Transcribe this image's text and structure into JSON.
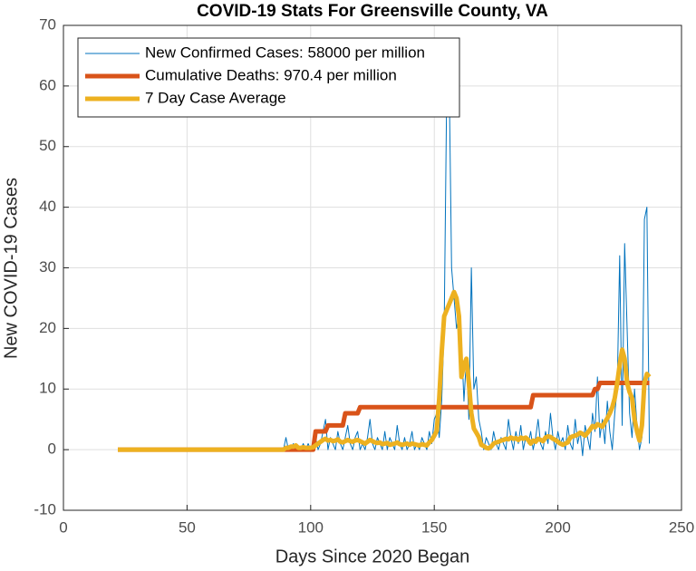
{
  "chart_data": {
    "type": "line",
    "title": "COVID-19 Stats For Greensville County, VA",
    "x_label": "Days Since 2020 Began",
    "y_label": "New COVID-19 Cases",
    "xlim": [
      0,
      250
    ],
    "xticks": [
      0,
      50,
      100,
      150,
      200,
      250
    ],
    "ylim": [
      -10,
      70
    ],
    "yticks": [
      -10,
      0,
      10,
      20,
      30,
      40,
      50,
      60,
      70
    ],
    "grid": true,
    "legend": "upper left",
    "x": [
      22,
      88,
      89,
      90,
      91,
      92,
      93,
      94,
      95,
      96,
      97,
      98,
      99,
      100,
      101,
      102,
      103,
      104,
      105,
      106,
      107,
      108,
      109,
      110,
      111,
      112,
      113,
      114,
      115,
      116,
      117,
      118,
      119,
      120,
      121,
      122,
      123,
      124,
      125,
      126,
      127,
      128,
      129,
      130,
      131,
      132,
      133,
      134,
      135,
      136,
      137,
      138,
      139,
      140,
      141,
      142,
      143,
      144,
      145,
      146,
      147,
      148,
      149,
      150,
      151,
      152,
      153,
      154,
      155,
      156,
      157,
      158,
      159,
      160,
      161,
      162,
      163,
      164,
      165,
      166,
      167,
      168,
      169,
      170,
      171,
      172,
      173,
      174,
      175,
      176,
      177,
      178,
      179,
      180,
      181,
      182,
      183,
      184,
      185,
      186,
      187,
      188,
      189,
      190,
      191,
      192,
      193,
      194,
      195,
      196,
      197,
      198,
      199,
      200,
      201,
      202,
      203,
      204,
      205,
      206,
      207,
      208,
      209,
      210,
      211,
      212,
      213,
      214,
      215,
      216,
      217,
      218,
      219,
      220,
      221,
      222,
      223,
      224,
      225,
      226,
      227,
      228,
      229,
      230,
      231,
      232,
      233,
      234,
      235,
      236,
      237
    ],
    "series": [
      {
        "name": "New Confirmed Cases: 58000 per million",
        "color": "#0072BD",
        "width": 1,
        "values": [
          0,
          0,
          0,
          2,
          0,
          0,
          1,
          0,
          0,
          0,
          1,
          0,
          1,
          0,
          0,
          2,
          0,
          1,
          3,
          5,
          0,
          2,
          1,
          0,
          3,
          1,
          0,
          2,
          4,
          1,
          0,
          2,
          3,
          0,
          1,
          0,
          2,
          5,
          1,
          0,
          2,
          1,
          0,
          3,
          0,
          2,
          1,
          0,
          4,
          1,
          0,
          2,
          0,
          1,
          3,
          0,
          1,
          0,
          2,
          1,
          0,
          3,
          1,
          5,
          6,
          2,
          8,
          20,
          58,
          62,
          30,
          25,
          20,
          22,
          18,
          8,
          15,
          5,
          30,
          10,
          12,
          5,
          3,
          0,
          2,
          1,
          0,
          3,
          1,
          0,
          2,
          1,
          0,
          5,
          2,
          0,
          3,
          1,
          4,
          0,
          2,
          1,
          3,
          0,
          2,
          5,
          1,
          0,
          3,
          1,
          6,
          2,
          0,
          3,
          1,
          2,
          0,
          4,
          1,
          0,
          5,
          1,
          3,
          -1,
          4,
          2,
          0,
          6,
          3,
          12,
          2,
          5,
          1,
          8,
          3,
          0,
          6,
          10,
          32,
          4,
          34,
          20,
          6,
          2,
          10,
          4,
          0,
          2,
          38,
          40,
          1
        ]
      },
      {
        "name": "Cumulative Deaths: 970.4 per million",
        "color": "#D95319",
        "width": 5,
        "values": [
          0,
          0,
          0,
          0,
          0,
          0,
          0,
          0,
          0,
          0,
          0,
          0,
          0,
          0,
          0,
          3,
          3,
          3,
          3,
          3,
          4,
          4,
          4,
          4,
          4,
          4,
          4,
          6,
          6,
          6,
          6,
          6,
          6,
          7,
          7,
          7,
          7,
          7,
          7,
          7,
          7,
          7,
          7,
          7,
          7,
          7,
          7,
          7,
          7,
          7,
          7,
          7,
          7,
          7,
          7,
          7,
          7,
          7,
          7,
          7,
          7,
          7,
          7,
          7,
          7,
          7,
          7,
          7,
          7,
          7,
          7,
          7,
          7,
          7,
          7,
          7,
          7,
          7,
          7,
          7,
          7,
          7,
          7,
          7,
          7,
          7,
          7,
          7,
          7,
          7,
          7,
          7,
          7,
          7,
          7,
          7,
          7,
          7,
          7,
          7,
          7,
          7,
          7,
          9,
          9,
          9,
          9,
          9,
          9,
          9,
          9,
          9,
          9,
          9,
          9,
          9,
          9,
          9,
          9,
          9,
          9,
          9,
          9,
          9,
          9,
          9,
          9,
          9,
          10,
          10,
          11,
          11,
          11,
          11,
          11,
          11,
          11,
          11,
          11,
          11,
          11,
          11,
          11,
          11,
          11,
          11,
          11,
          11,
          11,
          11,
          11
        ]
      },
      {
        "name": "7 Day Case Average",
        "color": "#EDB120",
        "width": 5,
        "values": [
          0,
          0,
          0,
          0.3,
          0.3,
          0.5,
          0.5,
          0.7,
          0.3,
          0.3,
          0.4,
          0.3,
          0.3,
          0.3,
          0.4,
          0.7,
          1,
          1.3,
          1.6,
          1.8,
          1.5,
          1.6,
          1.4,
          1.5,
          1.7,
          1.3,
          1.2,
          1.4,
          1.6,
          1.4,
          1.3,
          1.5,
          1.6,
          1.4,
          1.2,
          1.0,
          1.3,
          1.6,
          1.4,
          1.2,
          1.1,
          1.2,
          0.9,
          1.0,
          1.1,
          0.8,
          0.9,
          1.0,
          1.2,
          0.9,
          0.8,
          0.9,
          1.0,
          0.8,
          1.0,
          0.9,
          0.8,
          0.7,
          0.9,
          0.8,
          0.7,
          1.2,
          1.6,
          2.3,
          3.1,
          8.5,
          16,
          22,
          23,
          24,
          25,
          26,
          25,
          22,
          12,
          14,
          15,
          11,
          6,
          3.5,
          2.8,
          2.1,
          0.8,
          0.6,
          0.3,
          0.2,
          0.5,
          1.0,
          1.2,
          1.3,
          1.5,
          1.6,
          1.8,
          1.7,
          2.0,
          1.8,
          1.9,
          1.6,
          2.0,
          1.8,
          2.0,
          1.6,
          1.0,
          1.5,
          1.3,
          1.8,
          1.6,
          1.4,
          2.0,
          2.2,
          2.1,
          1.8,
          1.6,
          1.3,
          1.0,
          0.8,
          1.0,
          1.2,
          2.0,
          2.2,
          2.3,
          2.5,
          2.8,
          2.6,
          2.3,
          2.8,
          3.3,
          3.9,
          3.7,
          4.2,
          4.0,
          3.8,
          4.5,
          5.2,
          6,
          7,
          8.5,
          11,
          14,
          16.5,
          15,
          11,
          9.5,
          8.5,
          5,
          3,
          1.5,
          4,
          11,
          12.5,
          12
        ]
      }
    ]
  }
}
